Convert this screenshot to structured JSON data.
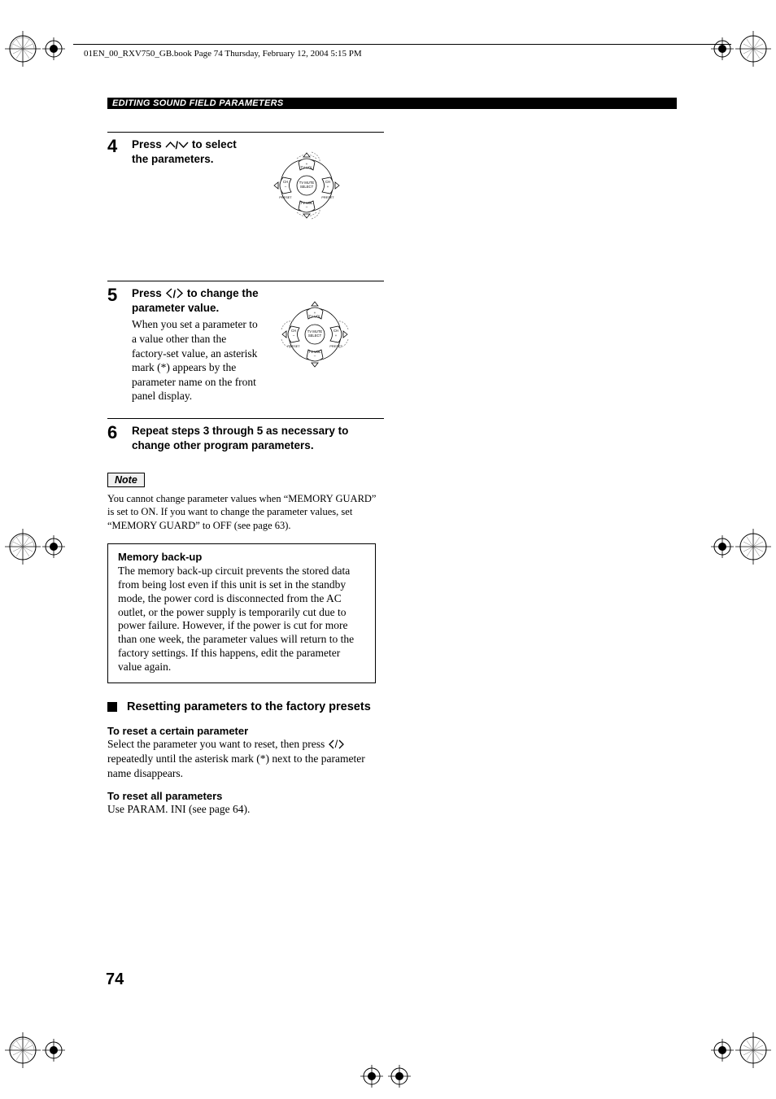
{
  "header": {
    "runningTitle": "01EN_00_RXV750_GB.book  Page 74  Thursday, February 12, 2004  5:15 PM"
  },
  "sectionBar": "EDITING SOUND FIELD PARAMETERS",
  "steps": {
    "s4": {
      "num": "4",
      "headPre": "Press ",
      "headPost": " to select the parameters."
    },
    "s5": {
      "num": "5",
      "headPre": "Press ",
      "headPost": " to change the parameter value.",
      "body": "When you set a parameter to a value other than the factory-set value, an asterisk mark (*) appears by the parameter name on the front panel display."
    },
    "s6": {
      "num": "6",
      "head": "Repeat steps 3 through 5 as necessary to change other program parameters."
    }
  },
  "note": {
    "label": "Note",
    "text": "You cannot change parameter values when “MEMORY GUARD” is set to ON. If you want to change the parameter values, set “MEMORY GUARD” to OFF (see page 63)."
  },
  "infoBox": {
    "title": "Memory back-up",
    "text": "The memory back-up circuit prevents the stored data from being lost even if this unit is set in the standby mode, the power cord is disconnected from the AC outlet, or the power supply is temporarily cut due to power failure. However, if the power is cut for more than one week, the parameter values will return to the factory settings. If this happens, edit the parameter value again."
  },
  "subSection": {
    "title": "Resetting parameters to the factory presets"
  },
  "reset1": {
    "title": "To reset a certain parameter",
    "pre": "Select the parameter you want to reset, then press ",
    "post": " repeatedly until the asterisk mark (*) next to the parameter name disappears."
  },
  "reset2": {
    "title": "To reset all parameters",
    "text": "Use PARAM. INI (see page 64)."
  },
  "pageNumber": "74",
  "dpad": {
    "topLabel": "TV VOL",
    "bottomLabel": "TV VOL",
    "leftLabelTop": "CH",
    "leftLabelBottom": "PRESET",
    "rightLabelTop": "CH",
    "rightLabelBottom": "PRESET",
    "centerTop": "TV MUTE",
    "centerBottom": "SELECT",
    "plus": "+",
    "minus": "–",
    "colors": {
      "stroke": "#000000",
      "fill": "#ffffff",
      "dash": "#888888"
    }
  },
  "cropMark": {
    "colors": {
      "stroke": "#000000",
      "fill": "#ffffff",
      "hatch": "#555555"
    }
  }
}
